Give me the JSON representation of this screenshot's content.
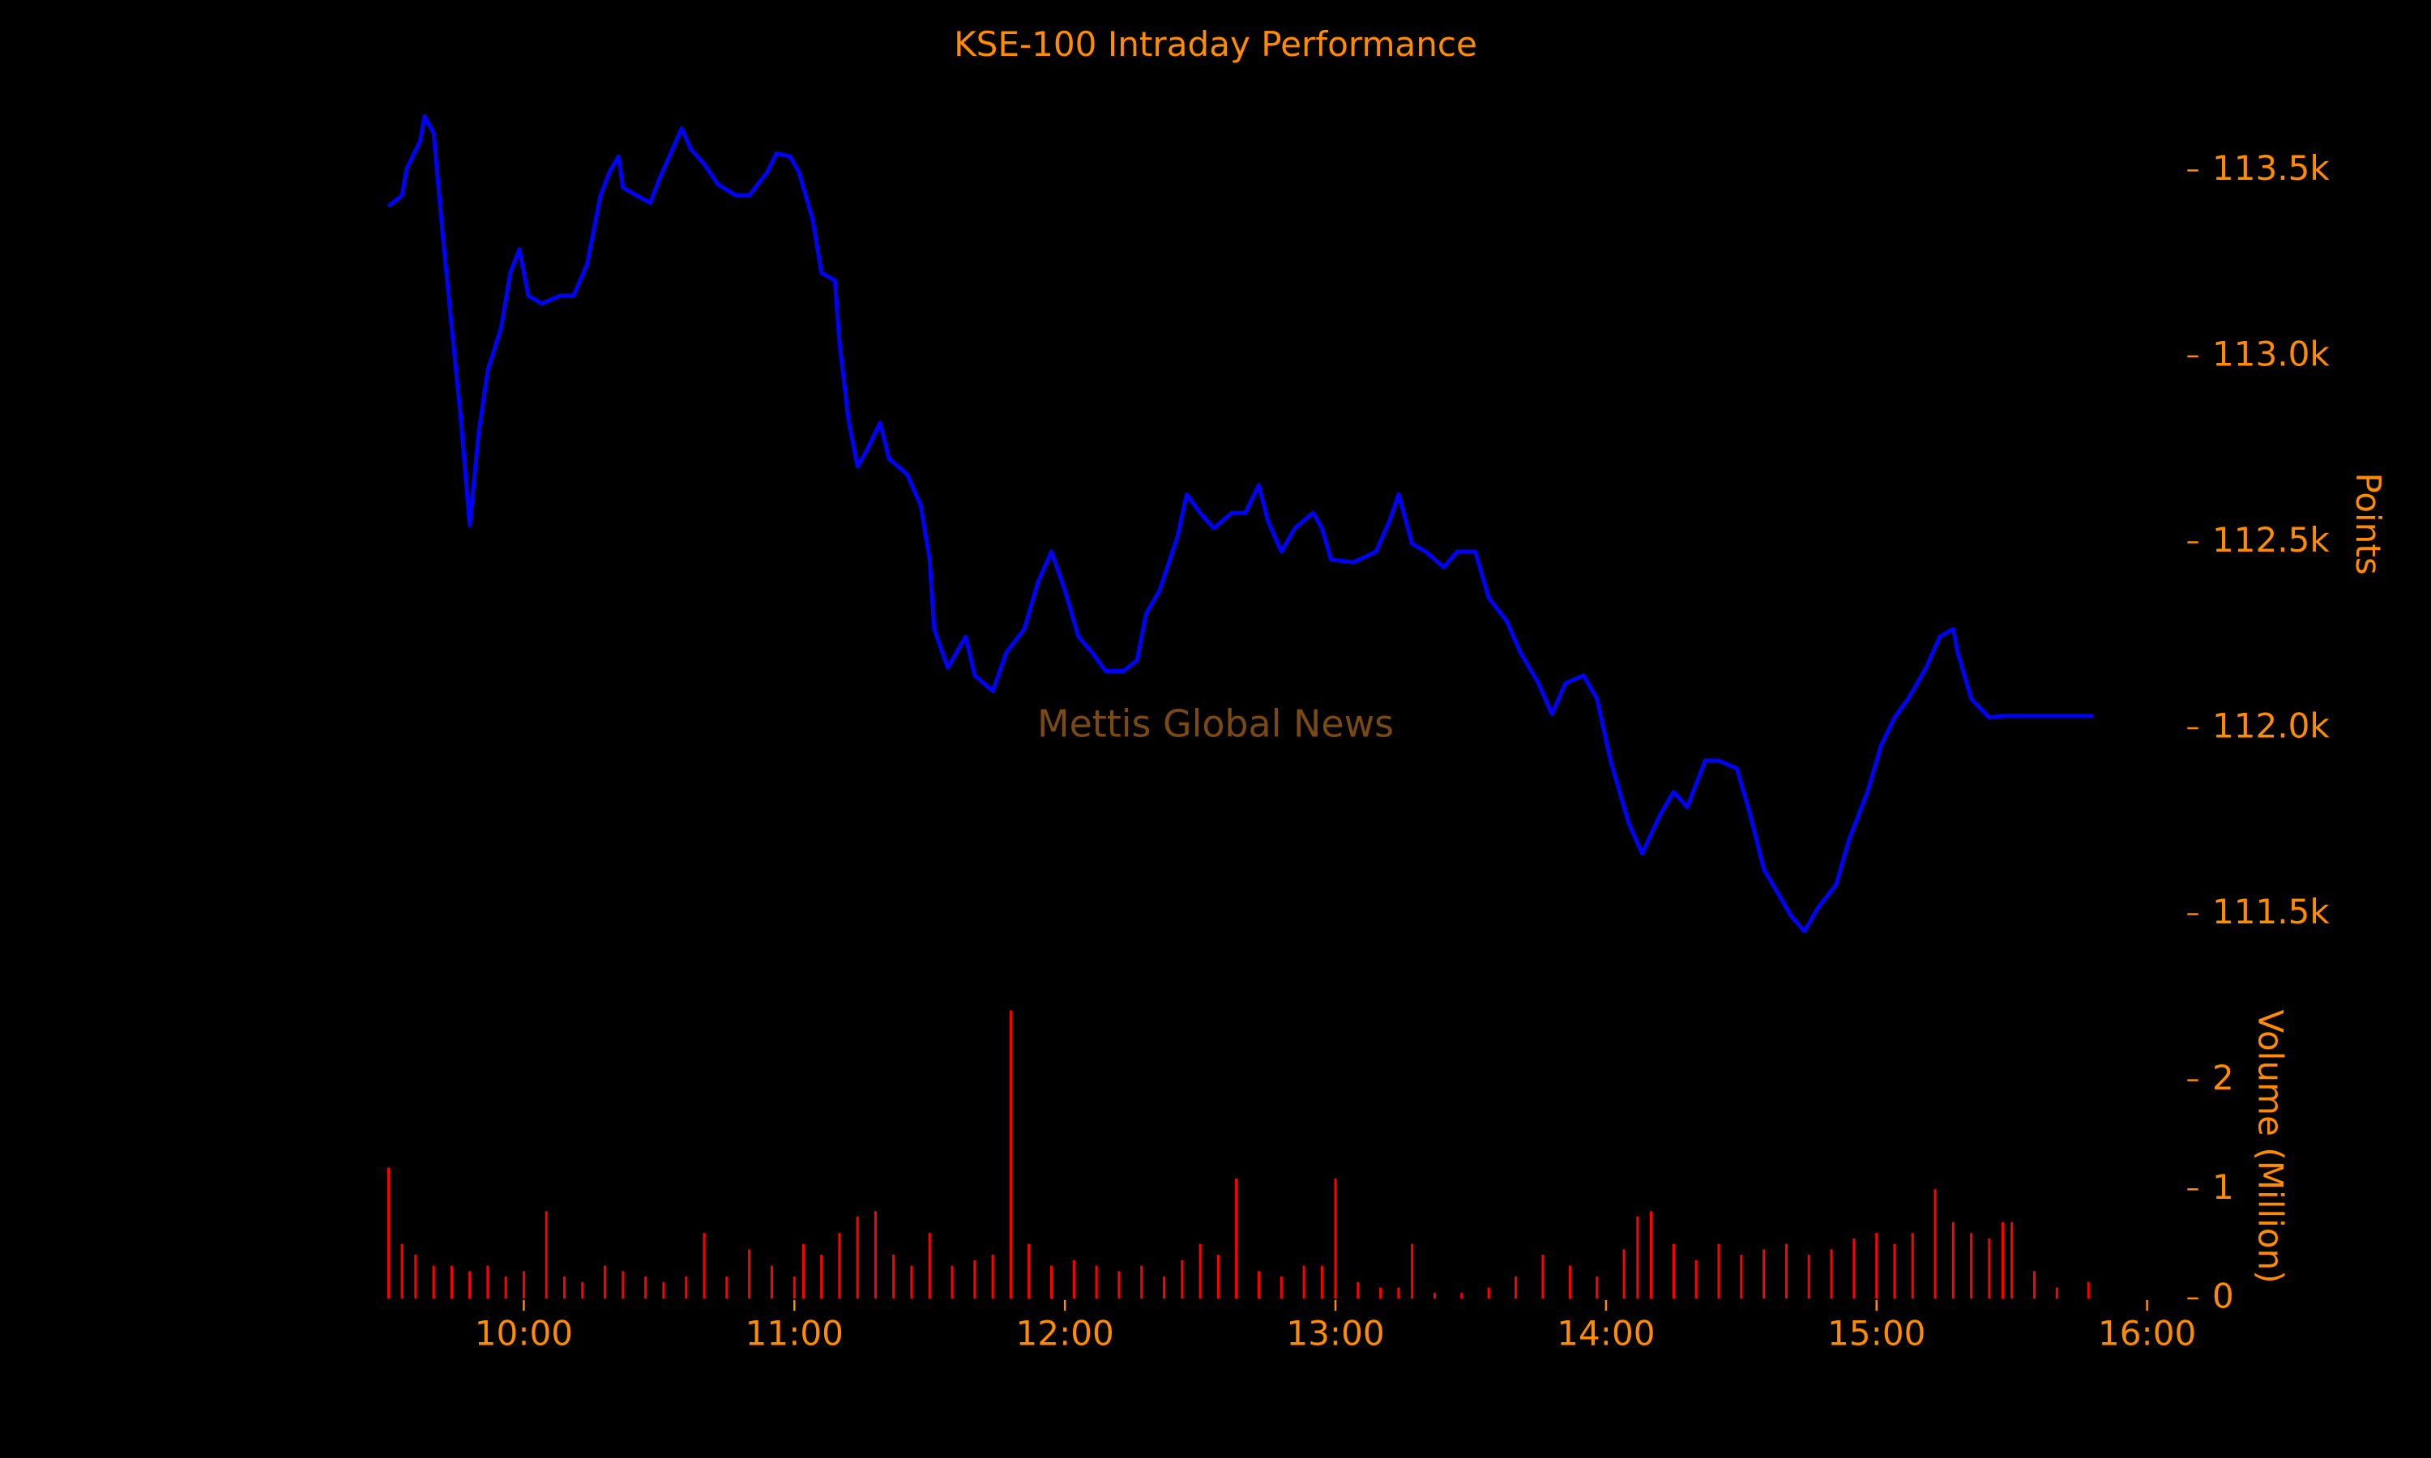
{
  "chart_data": [
    {
      "type": "line",
      "title": "KSE-100 Intraday Performance",
      "ylabel": "Points",
      "annotation": "Mettis Global News",
      "color": "#0000ff",
      "x": [
        "09:30",
        "09:33",
        "09:34",
        "09:37",
        "09:38",
        "09:40",
        "09:42",
        "09:44",
        "09:46",
        "09:48",
        "09:50",
        "09:52",
        "09:55",
        "09:57",
        "09:59",
        "10:01",
        "10:04",
        "10:08",
        "10:11",
        "10:14",
        "10:17",
        "10:19",
        "10:21",
        "10:22",
        "10:25",
        "10:28",
        "10:30",
        "10:33",
        "10:35",
        "10:37",
        "10:40",
        "10:43",
        "10:47",
        "10:50",
        "10:54",
        "10:56",
        "10:59",
        "11:01",
        "11:04",
        "11:06",
        "11:09",
        "11:10",
        "11:12",
        "11:14",
        "11:16",
        "11:19",
        "11:21",
        "11:25",
        "11:28",
        "11:30",
        "11:31",
        "11:34",
        "11:38",
        "11:40",
        "11:44",
        "11:47",
        "11:51",
        "11:54",
        "11:57",
        "12:00",
        "12:03",
        "12:06",
        "12:09",
        "12:13",
        "12:16",
        "12:18",
        "12:21",
        "12:25",
        "12:27",
        "12:30",
        "12:33",
        "12:37",
        "12:40",
        "12:43",
        "12:45",
        "12:48",
        "12:51",
        "12:55",
        "12:57",
        "12:59",
        "13:04",
        "13:09",
        "13:12",
        "13:14",
        "13:17",
        "13:20",
        "13:24",
        "13:27",
        "13:31",
        "13:34",
        "13:38",
        "13:41",
        "13:45",
        "13:48",
        "13:51",
        "13:55",
        "13:58",
        "14:01",
        "14:05",
        "14:08",
        "14:12",
        "14:15",
        "14:18",
        "14:22",
        "14:25",
        "14:29",
        "14:32",
        "14:35",
        "14:39",
        "14:41",
        "14:44",
        "14:47",
        "14:51",
        "14:54",
        "14:58",
        "15:01",
        "15:04",
        "15:07",
        "15:11",
        "15:14",
        "15:17",
        "15:18",
        "15:21",
        "15:25",
        "15:28",
        "15:48"
      ],
      "values": [
        113404,
        113433,
        113504,
        113579,
        113646,
        113600,
        113329,
        113079,
        112837,
        112546,
        112796,
        112963,
        113079,
        113225,
        113288,
        113163,
        113142,
        113163,
        113163,
        113246,
        113433,
        113496,
        113538,
        113454,
        113433,
        113413,
        113475,
        113558,
        113613,
        113558,
        113517,
        113463,
        113433,
        113433,
        113496,
        113546,
        113538,
        113496,
        113371,
        113225,
        113204,
        113038,
        112829,
        112704,
        112746,
        112821,
        112725,
        112683,
        112600,
        112454,
        112267,
        112163,
        112246,
        112142,
        112100,
        112204,
        112267,
        112392,
        112475,
        112371,
        112246,
        112204,
        112154,
        112154,
        112183,
        112308,
        112371,
        112517,
        112629,
        112579,
        112538,
        112579,
        112579,
        112654,
        112558,
        112475,
        112538,
        112579,
        112538,
        112454,
        112446,
        112475,
        112558,
        112629,
        112496,
        112475,
        112433,
        112475,
        112475,
        112350,
        112288,
        112204,
        112121,
        112038,
        112121,
        112142,
        112079,
        111913,
        111746,
        111663,
        111767,
        111829,
        111788,
        111913,
        111913,
        111892,
        111767,
        111621,
        111538,
        111496,
        111454,
        111517,
        111579,
        111704,
        111829,
        111954,
        112029,
        112079,
        112163,
        112246,
        112267,
        112204,
        112079,
        112029,
        112033,
        112033
      ],
      "xlim": [
        "09:30",
        "16:00"
      ],
      "ylim": [
        111400,
        113700
      ],
      "yticks": [
        {
          "value": 111500,
          "label": "111.5k"
        },
        {
          "value": 112000,
          "label": "112.0k"
        },
        {
          "value": 112500,
          "label": "112.5k"
        },
        {
          "value": 113000,
          "label": "113.0k"
        },
        {
          "value": 113500,
          "label": "113.5k"
        }
      ]
    },
    {
      "type": "bar",
      "ylabel": "Volume (Million)",
      "color": "#ff0000",
      "x": [
        "09:30",
        "09:33",
        "09:36",
        "09:40",
        "09:44",
        "09:48",
        "09:52",
        "09:56",
        "10:00",
        "10:05",
        "10:09",
        "10:13",
        "10:18",
        "10:22",
        "10:27",
        "10:31",
        "10:36",
        "10:40",
        "10:45",
        "10:50",
        "10:55",
        "11:00",
        "11:02",
        "11:06",
        "11:10",
        "11:14",
        "11:18",
        "11:22",
        "11:26",
        "11:30",
        "11:35",
        "11:40",
        "11:44",
        "11:48",
        "11:52",
        "11:57",
        "12:02",
        "12:07",
        "12:12",
        "12:17",
        "12:22",
        "12:26",
        "12:30",
        "12:34",
        "12:38",
        "12:43",
        "12:48",
        "12:53",
        "12:57",
        "13:00",
        "13:05",
        "13:10",
        "13:14",
        "13:17",
        "13:22",
        "13:28",
        "13:34",
        "13:40",
        "13:46",
        "13:52",
        "13:58",
        "14:04",
        "14:07",
        "14:10",
        "14:15",
        "14:20",
        "14:25",
        "14:30",
        "14:35",
        "14:40",
        "14:45",
        "14:50",
        "14:55",
        "15:00",
        "15:04",
        "15:08",
        "15:13",
        "15:17",
        "15:21",
        "15:25",
        "15:28",
        "15:30",
        "15:35",
        "15:40",
        "15:47"
      ],
      "values": [
        1.2,
        0.5,
        0.4,
        0.3,
        0.3,
        0.25,
        0.3,
        0.2,
        0.25,
        0.8,
        0.2,
        0.15,
        0.3,
        0.25,
        0.2,
        0.15,
        0.2,
        0.6,
        0.2,
        0.45,
        0.3,
        0.2,
        0.5,
        0.4,
        0.6,
        0.75,
        0.8,
        0.4,
        0.3,
        0.6,
        0.3,
        0.35,
        0.4,
        2.64,
        0.5,
        0.3,
        0.35,
        0.3,
        0.25,
        0.3,
        0.2,
        0.35,
        0.5,
        0.4,
        1.1,
        0.25,
        0.2,
        0.3,
        0.3,
        1.1,
        0.15,
        0.1,
        0.1,
        0.5,
        0.05,
        0.05,
        0.1,
        0.2,
        0.4,
        0.3,
        0.2,
        0.45,
        0.75,
        0.8,
        0.5,
        0.35,
        0.5,
        0.4,
        0.45,
        0.5,
        0.4,
        0.45,
        0.55,
        0.6,
        0.5,
        0.6,
        1.0,
        0.7,
        0.6,
        0.55,
        0.7,
        0.7,
        0.25,
        0.1,
        0.15
      ],
      "xlim": [
        "09:30",
        "16:00"
      ],
      "ylim": [
        0,
        2.67
      ],
      "xticks": [
        "10:00",
        "11:00",
        "12:00",
        "13:00",
        "14:00",
        "15:00",
        "16:00"
      ],
      "yticks": [
        0,
        1,
        2
      ]
    }
  ]
}
